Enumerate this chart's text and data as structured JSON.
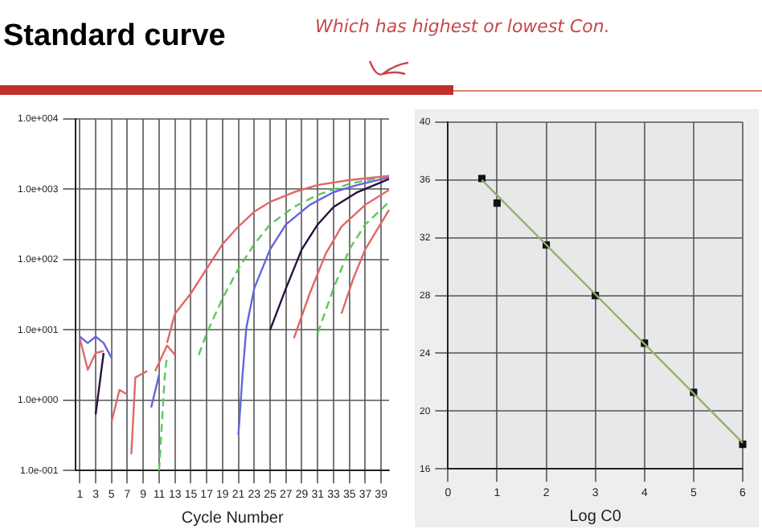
{
  "chart_data": [
    {
      "type": "line",
      "title": "Standard curve",
      "annotations": [
        "Which has highest or lowest Con."
      ],
      "xlabel": "Cycle Number",
      "log": true,
      "grid": true,
      "xlim": [
        0.5,
        40
      ],
      "xticks": [
        1,
        3,
        5,
        7,
        9,
        11,
        13,
        15,
        17,
        19,
        21,
        23,
        25,
        27,
        29,
        31,
        33,
        35,
        37,
        39
      ],
      "ylim": [
        0.1,
        10000
      ],
      "yticks": [
        {
          "value": 0.1,
          "label": "1.0e-001"
        },
        {
          "value": 1,
          "label": "1.0e+000"
        },
        {
          "value": 10,
          "label": "1.0e+001"
        },
        {
          "value": 100,
          "label": "1.0e+002"
        },
        {
          "value": 1000,
          "label": "1.0e+003"
        },
        {
          "value": 10000,
          "label": "1.0e+004"
        }
      ],
      "series": [
        {
          "color": "#e06868",
          "x": [
            12,
            13,
            15,
            17,
            19,
            21,
            23,
            25,
            28,
            31,
            35,
            40
          ],
          "values": [
            6.5,
            17,
            33,
            74,
            166,
            295,
            480,
            660,
            910,
            1150,
            1350,
            1550
          ]
        },
        {
          "color": "#5cc85c",
          "line_style": "dashed",
          "x": [
            16,
            17,
            19,
            21,
            23,
            25,
            28,
            31,
            35,
            40
          ],
          "values": [
            4.4,
            9,
            28,
            74,
            166,
            316,
            560,
            830,
            1200,
            1550
          ]
        },
        {
          "color": "#6464e0",
          "x": [
            21,
            21.5,
            22,
            23,
            25,
            27,
            30,
            33,
            36,
            40
          ],
          "values": [
            0.32,
            2.1,
            10.7,
            39,
            140,
            316,
            600,
            910,
            1150,
            1480
          ]
        },
        {
          "color": "#2a1040",
          "x": [
            25,
            27,
            29,
            31,
            33,
            36,
            40
          ],
          "values": [
            10,
            39,
            140,
            316,
            560,
            910,
            1400
          ]
        },
        {
          "color": "#e06868",
          "x": [
            28,
            30,
            32,
            34,
            37,
            40
          ],
          "values": [
            7.6,
            33,
            120,
            295,
            600,
            980
          ]
        },
        {
          "color": "#5cc85c",
          "line_style": "dashed",
          "x": [
            31,
            33,
            35,
            37,
            40
          ],
          "values": [
            9,
            39,
            140,
            316,
            660
          ]
        },
        {
          "color": "#e06868",
          "x": [
            34,
            35.5,
            37,
            40
          ],
          "values": [
            17,
            54,
            140,
            510
          ]
        },
        {
          "color": "#6464e0",
          "x": [
            1,
            2,
            3,
            4,
            5
          ],
          "values": [
            8,
            6.5,
            8,
            6.5,
            4
          ]
        },
        {
          "color": "#2a1040",
          "x": [
            3,
            4
          ],
          "values": [
            0.63,
            4.7
          ]
        },
        {
          "color": "#e06868",
          "x": [
            1,
            2,
            3,
            4
          ],
          "values": [
            7.6,
            2.7,
            4.7,
            5
          ]
        },
        {
          "color": "#e06868",
          "x": [
            5,
            6,
            7
          ],
          "values": [
            0.49,
            1.4,
            1.2
          ]
        },
        {
          "color": "#e06868",
          "x": [
            7.5,
            8,
            9.5
          ],
          "values": [
            0.17,
            2.1,
            2.6
          ]
        },
        {
          "color": "#6464e0",
          "x": [
            10,
            11
          ],
          "values": [
            0.79,
            2.3
          ]
        },
        {
          "color": "#e06868",
          "x": [
            10.5,
            12,
            13
          ],
          "values": [
            2.6,
            6,
            4.4
          ]
        },
        {
          "color": "#5cc85c",
          "line_style": "dashed",
          "x": [
            11,
            11.7,
            12
          ],
          "values": [
            0.1,
            2.1,
            4.4
          ]
        }
      ]
    },
    {
      "type": "scatter",
      "xlabel": "Log C0",
      "grid": true,
      "xlim": [
        0,
        6
      ],
      "xticks": [
        0,
        1,
        2,
        3,
        4,
        5,
        6
      ],
      "ylim": [
        16,
        40
      ],
      "yticks": [
        16,
        20,
        24,
        28,
        32,
        36,
        40
      ],
      "series": [
        {
          "type": "line",
          "marker": "none",
          "color": "#90b070",
          "x": [
            0.69,
            6
          ],
          "values": [
            36,
            17.8
          ]
        },
        {
          "marker": "square",
          "color": "#111111",
          "x": [
            0.69,
            1,
            2,
            3,
            4,
            5,
            6
          ],
          "values": [
            36.1,
            34.4,
            31.5,
            28,
            24.7,
            21.3,
            17.7
          ]
        }
      ]
    }
  ]
}
